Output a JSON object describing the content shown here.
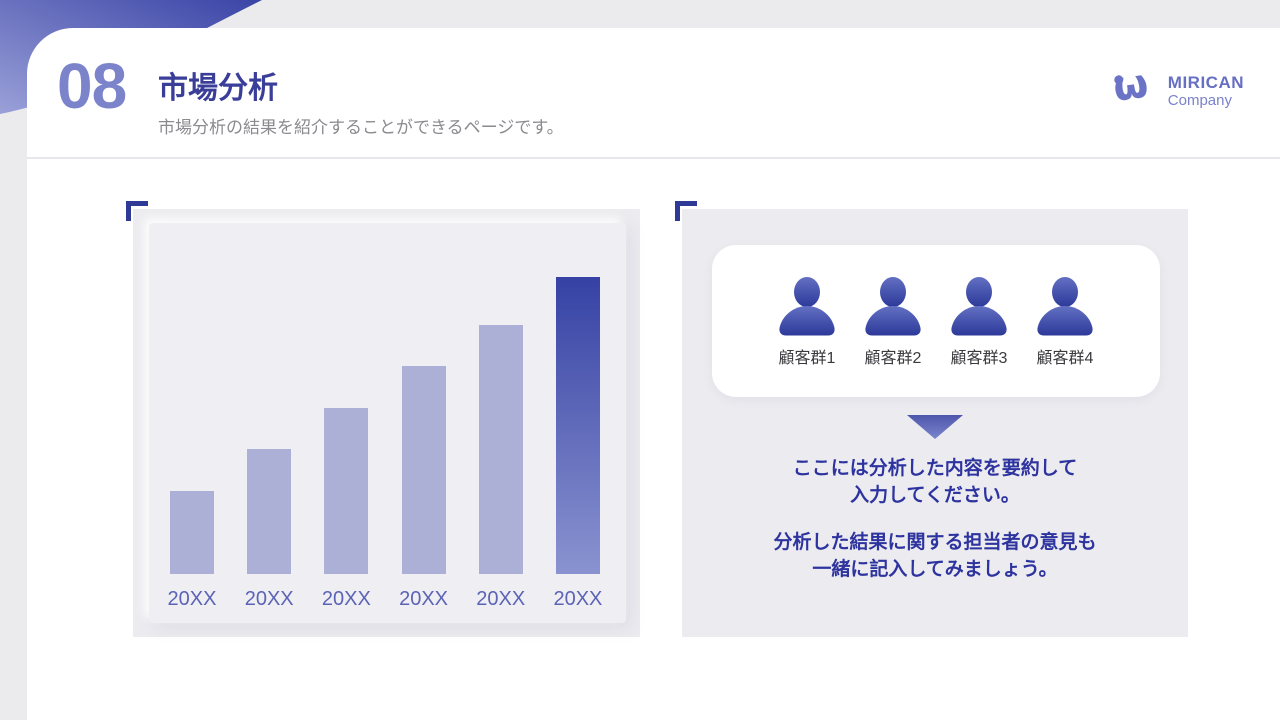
{
  "header": {
    "page_number": "08",
    "title": "市場分析",
    "subtitle": "市場分析の結果を紹介することができるページです。"
  },
  "logo": {
    "name": "MIRICAN",
    "company": "Company",
    "mark_icon": "iw-monogram",
    "color": "#6b73c6"
  },
  "chart_data": {
    "type": "bar",
    "title": "",
    "xlabel": "",
    "ylabel": "",
    "categories": [
      "20XX",
      "20XX",
      "20XX",
      "20XX",
      "20XX",
      "20XX"
    ],
    "values": [
      28,
      42,
      56,
      70,
      84,
      100
    ],
    "value_unit": "relative bar height, % of tallest bar",
    "highlight_index": 5,
    "bar_color": "#acb0d6",
    "highlight_gradient": [
      "#3642a4",
      "#8a93d0"
    ],
    "label_color": "#5b63b6",
    "axes_visible": false,
    "grid": false,
    "legend": "none"
  },
  "segments": {
    "icon": "person-icon",
    "labels": [
      "顧客群1",
      "顧客群2",
      "顧客群3",
      "顧客群4"
    ]
  },
  "summary": {
    "line1": "ここには分析した内容を要約して",
    "line2": "入力してください。",
    "line3": "分析した結果に関する担当者の意見も",
    "line4": "一緒に記入してみましょう。"
  },
  "colors": {
    "page_background": "#ebeaed",
    "card_background": "#ffffff",
    "panel_background": "#ecebef",
    "accent_dark": "#3a44a6",
    "accent": "#6b73c6",
    "accent_light": "#acb0d6",
    "page_number": "#7b83cb",
    "title_text": "#3a3e99",
    "subtitle_text": "#8a8a8f",
    "summary_text": "#2d339f",
    "bracket": "#2e3a96",
    "person_gradient": [
      "#6370c3",
      "#2c3999"
    ]
  }
}
